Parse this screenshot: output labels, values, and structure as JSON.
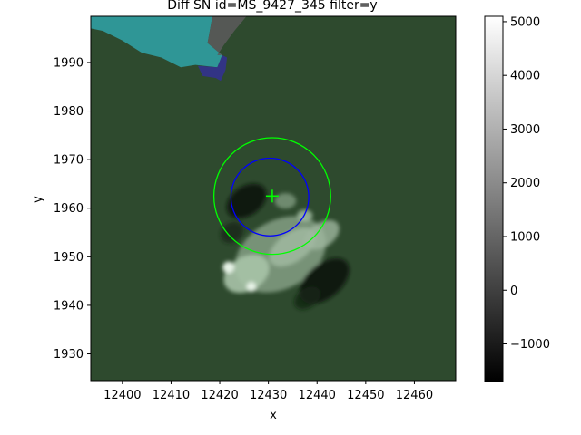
{
  "chart_data": {
    "type": "heatmap",
    "title": "Diff SN id=MS_9427_345 filter=y",
    "xlabel": "x",
    "ylabel": "y",
    "xlim": [
      12393.5,
      12468.5
    ],
    "ylim": [
      1924.5,
      1999.5
    ],
    "xticks": [
      12400,
      12410,
      12420,
      12430,
      12440,
      12450,
      12460
    ],
    "yticks": [
      1930,
      1940,
      1950,
      1960,
      1970,
      1980,
      1990
    ],
    "colorbar": {
      "colormap": "gray",
      "range": [
        -1700,
        5100
      ],
      "ticks": [
        -1000,
        0,
        1000,
        2000,
        3000,
        4000,
        5000
      ],
      "tick_labels": [
        "−1000",
        "0",
        "1000",
        "2000",
        "3000",
        "4000",
        "5000"
      ]
    },
    "overlay_tint": "#2d6b2d",
    "markers": {
      "center": {
        "x": 12430.8,
        "y": 1962.5,
        "symbol": "+",
        "color": "#00ff00"
      },
      "circles": [
        {
          "cx": 12430.8,
          "cy": 1962.5,
          "r": 12.0,
          "color": "#00ff00"
        },
        {
          "cx": 12430.3,
          "cy": 1962.3,
          "r": 8.0,
          "color": "#0000ff"
        }
      ]
    },
    "mask_regions": [
      {
        "name": "cyan-mask",
        "color": "#2fa3a8"
      },
      {
        "name": "gray-mask",
        "color": "#5a5a5a"
      },
      {
        "name": "blue-mask",
        "color": "#33338a"
      }
    ],
    "grid": false
  }
}
